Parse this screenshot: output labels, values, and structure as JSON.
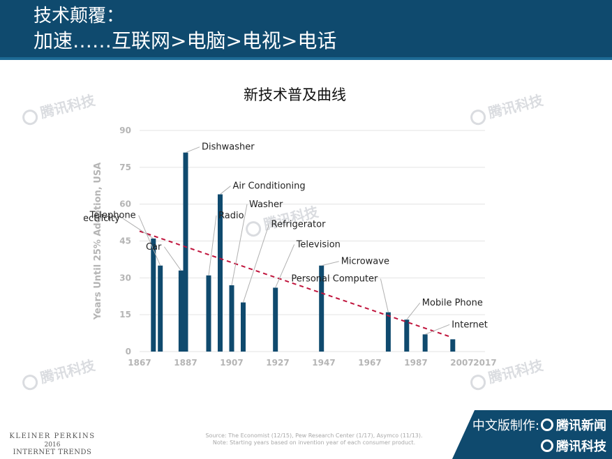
{
  "header": {
    "line1": "技术颠覆：",
    "line2": "加速……互联网>电脑>电视>电话"
  },
  "watermark": "腾讯科技",
  "footer": {
    "kp_line1": "KLEINER PERKINS",
    "kp_line2": "2016",
    "kp_line3": "INTERNET TRENDS",
    "source_line1": "Source: The Economist (12/15), Pew Research Center (1/17), Asymco (11/13).",
    "source_line2": "Note: Starting years based on invention year of each consumer product.",
    "brand_prefix": "中文版制作:",
    "brand_news": "腾讯新闻",
    "brand_tech": "腾讯科技"
  },
  "colors": {
    "header_bg": "#0f4a6e",
    "bar": "#0f4a6e",
    "trend": "#c0143c",
    "grid": "#e3e3e3",
    "tick_text": "#b5b5b5"
  },
  "chart_data": {
    "type": "bar",
    "title": "新技术普及曲线",
    "ylabel": "Years Until 25% Adoption, USA",
    "xlabel": "",
    "xlim": [
      1867,
      2017
    ],
    "ylim": [
      0,
      90
    ],
    "x_ticks": [
      1867,
      1887,
      1907,
      1927,
      1947,
      1967,
      1987,
      2007,
      2017
    ],
    "y_ticks": [
      0,
      15,
      30,
      45,
      60,
      75,
      90
    ],
    "grid": true,
    "series": [
      {
        "points": [
          {
            "label": "Electricity",
            "x": 1873,
            "y": 46
          },
          {
            "label": "Telephone",
            "x": 1876,
            "y": 35
          },
          {
            "label": "Car",
            "x": 1885,
            "y": 33
          },
          {
            "label": "Dishwasher",
            "x": 1887,
            "y": 81
          },
          {
            "label": "Radio",
            "x": 1897,
            "y": 31
          },
          {
            "label": "Air Conditioning",
            "x": 1902,
            "y": 64
          },
          {
            "label": "Washer",
            "x": 1907,
            "y": 27
          },
          {
            "label": "Refrigerator",
            "x": 1912,
            "y": 20
          },
          {
            "label": "Television",
            "x": 1926,
            "y": 26
          },
          {
            "label": "Microwave",
            "x": 1946,
            "y": 35
          },
          {
            "label": "Personal Computer",
            "x": 1975,
            "y": 16
          },
          {
            "label": "Mobile Phone",
            "x": 1983,
            "y": 13
          },
          {
            "label": "Internet",
            "x": 1991,
            "y": 7
          },
          {
            "label": "",
            "x": 2003,
            "y": 5
          }
        ]
      }
    ],
    "trendline": {
      "from": [
        1867,
        49
      ],
      "to": [
        2002,
        6
      ]
    }
  }
}
